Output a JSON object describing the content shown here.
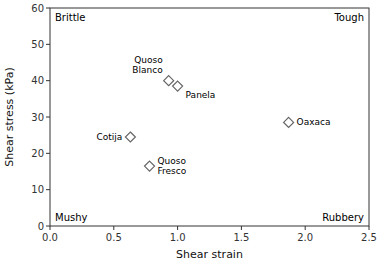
{
  "chart_data": {
    "type": "scatter",
    "x": [
      0.93,
      1.0,
      0.63,
      1.87,
      0.78
    ],
    "values": [
      40.0,
      38.5,
      24.5,
      28.5,
      16.5
    ],
    "labels": [
      "Quoso\nBlanco",
      "Panela",
      "Cotija",
      "Oaxaca",
      "Quoso\nFresco"
    ],
    "annotations": [
      "Brittle",
      "Tough",
      "Mushy",
      "Rubbery"
    ],
    "xlabel": "Shear strain",
    "ylabel": "Shear stress (kPa)",
    "xlim": [
      0.0,
      2.5
    ],
    "ylim": [
      0,
      60
    ],
    "xticks": [
      {
        "value": 0.0,
        "label": "0.0"
      },
      0.5,
      {
        "value": 1.0,
        "label": "1.0"
      },
      1.5,
      {
        "value": 2.0,
        "label": "2.0"
      },
      2.5
    ],
    "yticks": [
      0,
      10,
      20,
      30,
      40,
      50,
      60
    ],
    "color": "#666666",
    "marker": "diamond",
    "grid": false
  }
}
